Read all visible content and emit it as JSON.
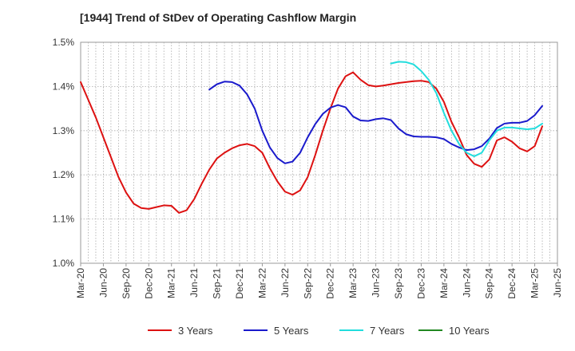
{
  "chart_data": {
    "type": "line",
    "title": "[1944]  Trend of StDev of Operating Cashflow Margin",
    "xlabel": "",
    "ylabel": "",
    "x_ticks": [
      "Mar-20",
      "Jun-20",
      "Sep-20",
      "Dec-20",
      "Mar-21",
      "Jun-21",
      "Sep-21",
      "Dec-21",
      "Mar-22",
      "Jun-22",
      "Sep-22",
      "Dec-22",
      "Mar-23",
      "Jun-23",
      "Sep-23",
      "Dec-23",
      "Mar-24",
      "Jun-24",
      "Sep-24",
      "Dec-24",
      "Mar-25",
      "Jun-25"
    ],
    "y_ticks": [
      "1.0%",
      "1.1%",
      "1.2%",
      "1.3%",
      "1.4%",
      "1.5%"
    ],
    "ylim": [
      1.0,
      1.5
    ],
    "y_unit": "%",
    "grid": true,
    "legend_position": "bottom",
    "series": [
      {
        "name": "3 Years",
        "color": "#dd1111",
        "points": [
          [
            "Mar-20",
            1.41
          ],
          [
            "Apr-20",
            1.37
          ],
          [
            "May-20",
            1.33
          ],
          [
            "Jun-20",
            1.285
          ],
          [
            "Jul-20",
            1.24
          ],
          [
            "Aug-20",
            1.195
          ],
          [
            "Sep-20",
            1.16
          ],
          [
            "Oct-20",
            1.135
          ],
          [
            "Nov-20",
            1.125
          ],
          [
            "Dec-20",
            1.123
          ],
          [
            "Jan-21",
            1.127
          ],
          [
            "Feb-21",
            1.131
          ],
          [
            "Mar-21",
            1.13
          ],
          [
            "Apr-21",
            1.114
          ],
          [
            "May-21",
            1.12
          ],
          [
            "Jun-21",
            1.145
          ],
          [
            "Jul-21",
            1.18
          ],
          [
            "Aug-21",
            1.212
          ],
          [
            "Sep-21",
            1.237
          ],
          [
            "Oct-21",
            1.25
          ],
          [
            "Nov-21",
            1.26
          ],
          [
            "Dec-21",
            1.267
          ],
          [
            "Jan-22",
            1.27
          ],
          [
            "Feb-22",
            1.265
          ],
          [
            "Mar-22",
            1.25
          ],
          [
            "Apr-22",
            1.215
          ],
          [
            "May-22",
            1.185
          ],
          [
            "Jun-22",
            1.162
          ],
          [
            "Jul-22",
            1.155
          ],
          [
            "Aug-22",
            1.165
          ],
          [
            "Sep-22",
            1.195
          ],
          [
            "Oct-22",
            1.245
          ],
          [
            "Nov-22",
            1.3
          ],
          [
            "Dec-22",
            1.35
          ],
          [
            "Jan-23",
            1.395
          ],
          [
            "Feb-23",
            1.423
          ],
          [
            "Mar-23",
            1.432
          ],
          [
            "Apr-23",
            1.415
          ],
          [
            "May-23",
            1.403
          ],
          [
            "Jun-23",
            1.4
          ],
          [
            "Jul-23",
            1.402
          ],
          [
            "Aug-23",
            1.405
          ],
          [
            "Sep-23",
            1.408
          ],
          [
            "Oct-23",
            1.41
          ],
          [
            "Nov-23",
            1.412
          ],
          [
            "Dec-23",
            1.413
          ],
          [
            "Jan-24",
            1.41
          ],
          [
            "Feb-24",
            1.395
          ],
          [
            "Mar-24",
            1.365
          ],
          [
            "Apr-24",
            1.32
          ],
          [
            "May-24",
            1.285
          ],
          [
            "Jun-24",
            1.245
          ],
          [
            "Jul-24",
            1.225
          ],
          [
            "Aug-24",
            1.218
          ],
          [
            "Sep-24",
            1.235
          ],
          [
            "Oct-24",
            1.278
          ],
          [
            "Nov-24",
            1.285
          ],
          [
            "Dec-24",
            1.275
          ],
          [
            "Jan-25",
            1.26
          ],
          [
            "Feb-25",
            1.253
          ],
          [
            "Mar-25",
            1.265
          ],
          [
            "Apr-25",
            1.31
          ]
        ]
      },
      {
        "name": "5 Years",
        "color": "#1a1acc",
        "points": [
          [
            "Aug-21",
            1.393
          ],
          [
            "Sep-21",
            1.405
          ],
          [
            "Oct-21",
            1.411
          ],
          [
            "Nov-21",
            1.41
          ],
          [
            "Dec-21",
            1.402
          ],
          [
            "Jan-22",
            1.382
          ],
          [
            "Feb-22",
            1.35
          ],
          [
            "Mar-22",
            1.3
          ],
          [
            "Apr-22",
            1.262
          ],
          [
            "May-22",
            1.238
          ],
          [
            "Jun-22",
            1.226
          ],
          [
            "Jul-22",
            1.23
          ],
          [
            "Aug-22",
            1.25
          ],
          [
            "Sep-22",
            1.285
          ],
          [
            "Oct-22",
            1.315
          ],
          [
            "Nov-22",
            1.338
          ],
          [
            "Dec-22",
            1.352
          ],
          [
            "Jan-23",
            1.358
          ],
          [
            "Feb-23",
            1.353
          ],
          [
            "Mar-23",
            1.332
          ],
          [
            "Apr-23",
            1.323
          ],
          [
            "May-23",
            1.322
          ],
          [
            "Jun-23",
            1.326
          ],
          [
            "Jul-23",
            1.328
          ],
          [
            "Aug-23",
            1.324
          ],
          [
            "Sep-23",
            1.305
          ],
          [
            "Oct-23",
            1.292
          ],
          [
            "Nov-23",
            1.287
          ],
          [
            "Dec-23",
            1.286
          ],
          [
            "Jan-24",
            1.286
          ],
          [
            "Feb-24",
            1.285
          ],
          [
            "Mar-24",
            1.281
          ],
          [
            "Apr-24",
            1.27
          ],
          [
            "May-24",
            1.262
          ],
          [
            "Jun-24",
            1.256
          ],
          [
            "Jul-24",
            1.258
          ],
          [
            "Aug-24",
            1.265
          ],
          [
            "Sep-24",
            1.282
          ],
          [
            "Oct-24",
            1.306
          ],
          [
            "Nov-24",
            1.316
          ],
          [
            "Dec-24",
            1.318
          ],
          [
            "Jan-25",
            1.318
          ],
          [
            "Feb-25",
            1.322
          ],
          [
            "Mar-25",
            1.335
          ],
          [
            "Apr-25",
            1.356
          ]
        ]
      },
      {
        "name": "7 Years",
        "color": "#22dddd",
        "points": [
          [
            "Aug-23",
            1.452
          ],
          [
            "Sep-23",
            1.456
          ],
          [
            "Oct-23",
            1.455
          ],
          [
            "Nov-23",
            1.45
          ],
          [
            "Dec-23",
            1.435
          ],
          [
            "Jan-24",
            1.415
          ],
          [
            "Feb-24",
            1.385
          ],
          [
            "Mar-24",
            1.34
          ],
          [
            "Apr-24",
            1.3
          ],
          [
            "May-24",
            1.27
          ],
          [
            "Jun-24",
            1.25
          ],
          [
            "Jul-24",
            1.242
          ],
          [
            "Aug-24",
            1.25
          ],
          [
            "Sep-24",
            1.278
          ],
          [
            "Oct-24",
            1.3
          ],
          [
            "Nov-24",
            1.307
          ],
          [
            "Dec-24",
            1.307
          ],
          [
            "Jan-25",
            1.305
          ],
          [
            "Feb-25",
            1.303
          ],
          [
            "Mar-25",
            1.305
          ],
          [
            "Apr-25",
            1.316
          ]
        ]
      },
      {
        "name": "10 Years",
        "color": "#228822",
        "points": []
      }
    ]
  }
}
